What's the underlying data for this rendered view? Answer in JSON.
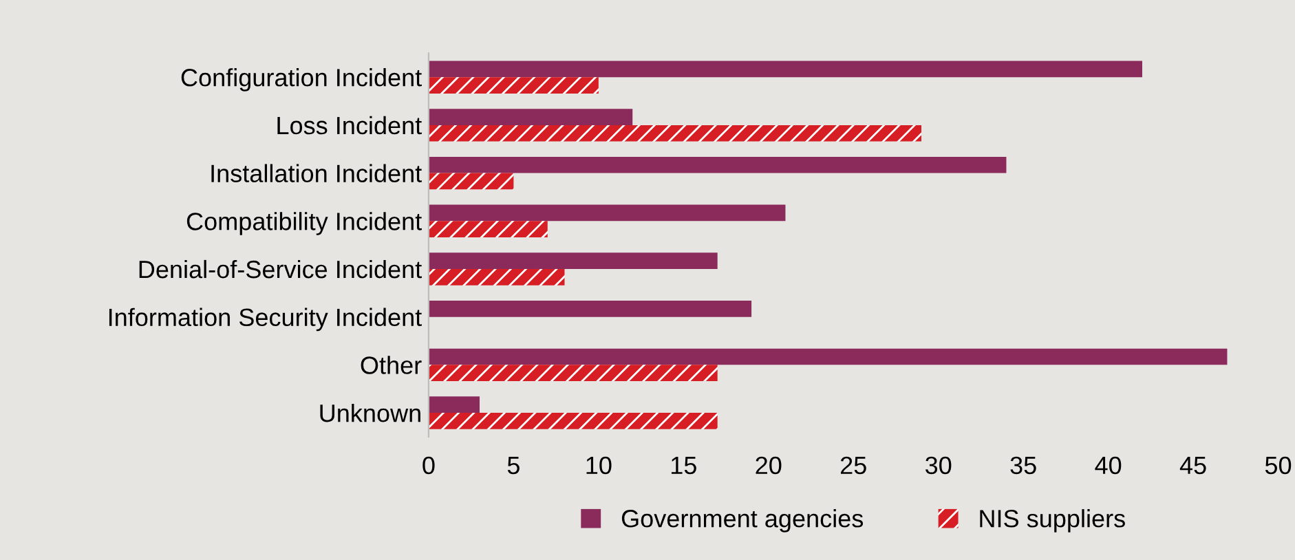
{
  "chart_data": {
    "type": "bar",
    "orientation": "horizontal",
    "categories": [
      "Configuration Incident",
      "Loss Incident",
      "Installation Incident",
      "Compatibility Incident",
      "Denial-of-Service Incident",
      "Information Security Incident",
      "Other",
      "Unknown"
    ],
    "series": [
      {
        "name": "Government agencies",
        "color": "#8a2b5c",
        "values": [
          42,
          12,
          34,
          21,
          17,
          19,
          47,
          3
        ]
      },
      {
        "name": "NIS suppliers",
        "color": "#d81e25",
        "values": [
          10,
          29,
          5,
          7,
          8,
          0,
          17,
          17
        ]
      }
    ],
    "xlim": [
      0,
      50
    ],
    "xticks": [
      0,
      5,
      10,
      15,
      20,
      25,
      30,
      35,
      40,
      45,
      50
    ],
    "grid": false,
    "legend": "bottom"
  }
}
